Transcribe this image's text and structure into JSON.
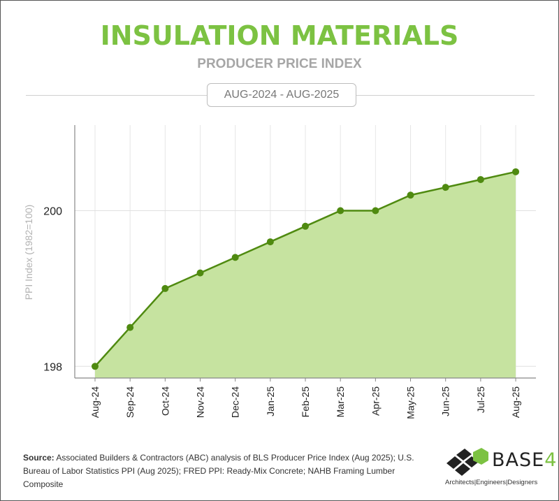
{
  "header": {
    "title": "INSULATION MATERIALS",
    "subtitle": "PRODUCER PRICE INDEX",
    "date_range": "AUG-2024 - AUG-2025"
  },
  "colors": {
    "accent": "#7cc242",
    "line": "#4f8a10",
    "fill": "#c6e3a0"
  },
  "chart_data": {
    "type": "area",
    "title": "",
    "xlabel": "",
    "ylabel": "PPI Index (1982=100)",
    "categories": [
      "Aug-24",
      "Sep-24",
      "Oct-24",
      "Nov-24",
      "Dec-24",
      "Jan-25",
      "Feb-25",
      "Mar-25",
      "Apr-25",
      "May-25",
      "Jun-25",
      "Jul-25",
      "Aug-25"
    ],
    "values": [
      198.0,
      198.5,
      199.0,
      199.2,
      199.4,
      199.6,
      199.8,
      200.0,
      200.0,
      200.2,
      200.3,
      200.4,
      200.5
    ],
    "yticks": [
      "198",
      "200"
    ],
    "ylim": [
      197.85,
      201.1
    ],
    "grid": true,
    "markers": true
  },
  "footer": {
    "source_label": "Source:",
    "source_text": " Associated Builders & Contractors (ABC) analysis of BLS Producer Price Index (Aug 2025); U.S. Bureau of Labor Statistics PPI (Aug 2025); FRED PPI: Ready-Mix Concrete; NAHB Framing Lumber Composite",
    "logo_name": "BASE",
    "logo_number": "4",
    "logo_tagline": "Architects|Engineers|Designers"
  }
}
